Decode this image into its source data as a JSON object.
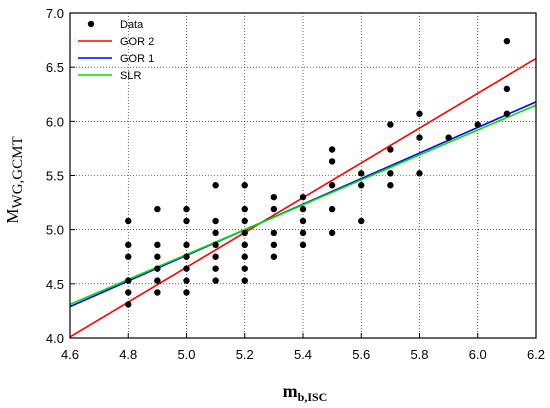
{
  "chart_data": {
    "type": "scatter",
    "xlabel": {
      "main": "m",
      "sub": "b,ISC"
    },
    "ylabel": {
      "main": "M",
      "sub": "WG,GCMT"
    },
    "xlim": [
      4.6,
      6.2
    ],
    "ylim": [
      4.0,
      7.0
    ],
    "xticks": [
      "4.6",
      "4.8",
      "5.0",
      "5.2",
      "5.4",
      "5.6",
      "5.8",
      "6.0",
      "6.2"
    ],
    "yticks": [
      "4.0",
      "4.5",
      "5.0",
      "5.5",
      "6.0",
      "6.5",
      "7.0"
    ],
    "grid": true,
    "legend_position": "top-left",
    "series": [
      {
        "name": "Data",
        "kind": "points",
        "color": "#000000",
        "points": [
          [
            4.8,
            5.08
          ],
          [
            4.8,
            4.86
          ],
          [
            4.8,
            4.75
          ],
          [
            4.8,
            4.53
          ],
          [
            4.8,
            4.42
          ],
          [
            4.8,
            4.31
          ],
          [
            4.9,
            5.19
          ],
          [
            4.9,
            4.86
          ],
          [
            4.9,
            4.75
          ],
          [
            4.9,
            4.64
          ],
          [
            4.9,
            4.53
          ],
          [
            4.9,
            4.42
          ],
          [
            5.0,
            5.19
          ],
          [
            5.0,
            5.08
          ],
          [
            5.0,
            4.86
          ],
          [
            5.0,
            4.75
          ],
          [
            5.0,
            4.64
          ],
          [
            5.0,
            4.53
          ],
          [
            5.0,
            4.42
          ],
          [
            5.1,
            5.41
          ],
          [
            5.1,
            5.08
          ],
          [
            5.1,
            4.97
          ],
          [
            5.1,
            4.86
          ],
          [
            5.1,
            4.75
          ],
          [
            5.1,
            4.64
          ],
          [
            5.1,
            4.53
          ],
          [
            5.2,
            5.41
          ],
          [
            5.2,
            5.19
          ],
          [
            5.2,
            5.08
          ],
          [
            5.2,
            4.97
          ],
          [
            5.2,
            4.86
          ],
          [
            5.2,
            4.75
          ],
          [
            5.2,
            4.64
          ],
          [
            5.2,
            4.53
          ],
          [
            5.3,
            5.3
          ],
          [
            5.3,
            5.19
          ],
          [
            5.3,
            4.97
          ],
          [
            5.3,
            4.86
          ],
          [
            5.3,
            4.75
          ],
          [
            5.4,
            5.3
          ],
          [
            5.4,
            5.19
          ],
          [
            5.4,
            5.08
          ],
          [
            5.4,
            4.97
          ],
          [
            5.4,
            4.86
          ],
          [
            5.5,
            5.74
          ],
          [
            5.5,
            5.63
          ],
          [
            5.5,
            5.41
          ],
          [
            5.5,
            5.19
          ],
          [
            5.5,
            4.97
          ],
          [
            5.6,
            5.52
          ],
          [
            5.6,
            5.41
          ],
          [
            5.6,
            5.08
          ],
          [
            5.7,
            5.97
          ],
          [
            5.7,
            5.74
          ],
          [
            5.7,
            5.52
          ],
          [
            5.7,
            5.41
          ],
          [
            5.8,
            6.07
          ],
          [
            5.8,
            5.85
          ],
          [
            5.8,
            5.52
          ],
          [
            5.9,
            5.85
          ],
          [
            6.0,
            5.97
          ],
          [
            6.1,
            6.74
          ],
          [
            6.1,
            6.3
          ],
          [
            6.1,
            6.07
          ]
        ]
      },
      {
        "name": "GOR 2",
        "kind": "line",
        "color": "#ff0000",
        "x": [
          4.6,
          6.2
        ],
        "y": [
          4.01,
          6.58
        ]
      },
      {
        "name": "GOR 1",
        "kind": "line",
        "color": "#0000ff",
        "x": [
          4.6,
          6.2
        ],
        "y": [
          4.29,
          6.18
        ]
      },
      {
        "name": "SLR",
        "kind": "line",
        "color": "#00e000",
        "x": [
          4.6,
          6.2
        ],
        "y": [
          4.31,
          6.15
        ]
      }
    ]
  }
}
